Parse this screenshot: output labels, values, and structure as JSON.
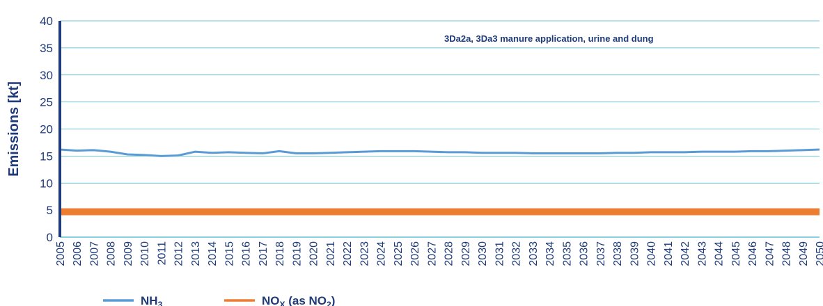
{
  "chart_data": {
    "type": "line",
    "ylabel": "Emissions [kt]",
    "xlabel": "",
    "ylim": [
      0,
      40
    ],
    "yticks": [
      0,
      5,
      10,
      15,
      20,
      25,
      30,
      35,
      40
    ],
    "grid": true,
    "legend_position": "bottom-left",
    "annotation": "3Da2a, 3Da3 manure application, urine and dung",
    "x": [
      2005,
      2006,
      2007,
      2008,
      2009,
      2010,
      2011,
      2012,
      2013,
      2014,
      2015,
      2016,
      2017,
      2018,
      2019,
      2020,
      2021,
      2022,
      2023,
      2024,
      2025,
      2026,
      2027,
      2028,
      2029,
      2030,
      2031,
      2032,
      2033,
      2034,
      2035,
      2036,
      2037,
      2038,
      2039,
      2040,
      2041,
      2042,
      2043,
      2044,
      2045,
      2046,
      2047,
      2048,
      2049,
      2050
    ],
    "series": [
      {
        "name": "NH3",
        "legend_main": "NH",
        "legend_sub": "3",
        "legend_after": "",
        "color": "#5b9bd5",
        "values": [
          16.2,
          16.0,
          16.1,
          15.8,
          15.3,
          15.2,
          15.0,
          15.1,
          15.8,
          15.6,
          15.7,
          15.6,
          15.5,
          15.9,
          15.5,
          15.5,
          15.6,
          15.7,
          15.8,
          15.9,
          15.9,
          15.9,
          15.8,
          15.7,
          15.7,
          15.6,
          15.6,
          15.6,
          15.5,
          15.5,
          15.5,
          15.5,
          15.5,
          15.6,
          15.6,
          15.7,
          15.7,
          15.7,
          15.8,
          15.8,
          15.8,
          15.9,
          15.9,
          16.0,
          16.1,
          16.2
        ]
      },
      {
        "name": "NOX (as NO2)",
        "legend_main": "NO",
        "legend_sub": "X",
        "legend_after": " (as NO",
        "legend_sub2": "2",
        "legend_end": ")",
        "color": "#ed7d31",
        "values": [
          4.7,
          4.7,
          4.7,
          4.7,
          4.7,
          4.7,
          4.7,
          4.7,
          4.7,
          4.7,
          4.7,
          4.7,
          4.7,
          4.7,
          4.7,
          4.7,
          4.7,
          4.7,
          4.7,
          4.7,
          4.7,
          4.7,
          4.7,
          4.7,
          4.7,
          4.7,
          4.7,
          4.7,
          4.7,
          4.7,
          4.7,
          4.7,
          4.7,
          4.7,
          4.7,
          4.7,
          4.7,
          4.7,
          4.7,
          4.7,
          4.7,
          4.7,
          4.7,
          4.7,
          4.7,
          4.7
        ]
      }
    ]
  }
}
